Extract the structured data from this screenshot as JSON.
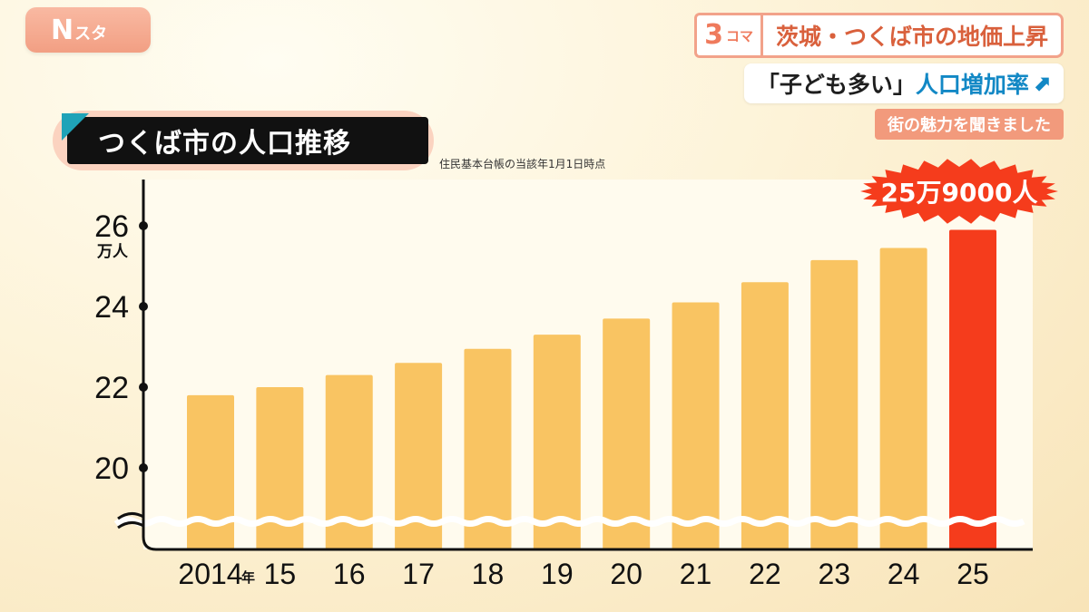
{
  "broadcast": {
    "logo_main": "N",
    "logo_sub": "スタ",
    "segment_num": "3",
    "segment_txt": "コマ",
    "headline_line1": "茨城・つくば市の地価上昇",
    "headline_line2_dark": "「子ども多い」",
    "headline_line2_accent": "人口増加率",
    "headline_arrow": "⬈",
    "subheadline": "街の魅力を聞きました"
  },
  "chart_title": "つくば市の人口推移",
  "source_note": "住民基本台帳の当該年1月1日時点",
  "highlight_label": "25万9000人",
  "colors": {
    "bar": "#f9c462",
    "bar_highlight": "#f53c1c",
    "badge": "#f53c1c",
    "plot_bg": "#fffbee"
  },
  "chart_data": {
    "type": "bar",
    "unit": "万人",
    "year_suffix": "年",
    "categories": [
      "2014",
      "15",
      "16",
      "17",
      "18",
      "19",
      "20",
      "21",
      "22",
      "23",
      "24",
      "25"
    ],
    "values": [
      21.8,
      22.0,
      22.3,
      22.6,
      22.95,
      23.3,
      23.7,
      24.1,
      24.6,
      25.15,
      25.45,
      25.9
    ],
    "highlight_index": 11,
    "y_ticks": [
      "20",
      "22",
      "24",
      "26"
    ],
    "ylim": [
      19.0,
      27.0
    ],
    "axis_break": true,
    "grid": false
  }
}
